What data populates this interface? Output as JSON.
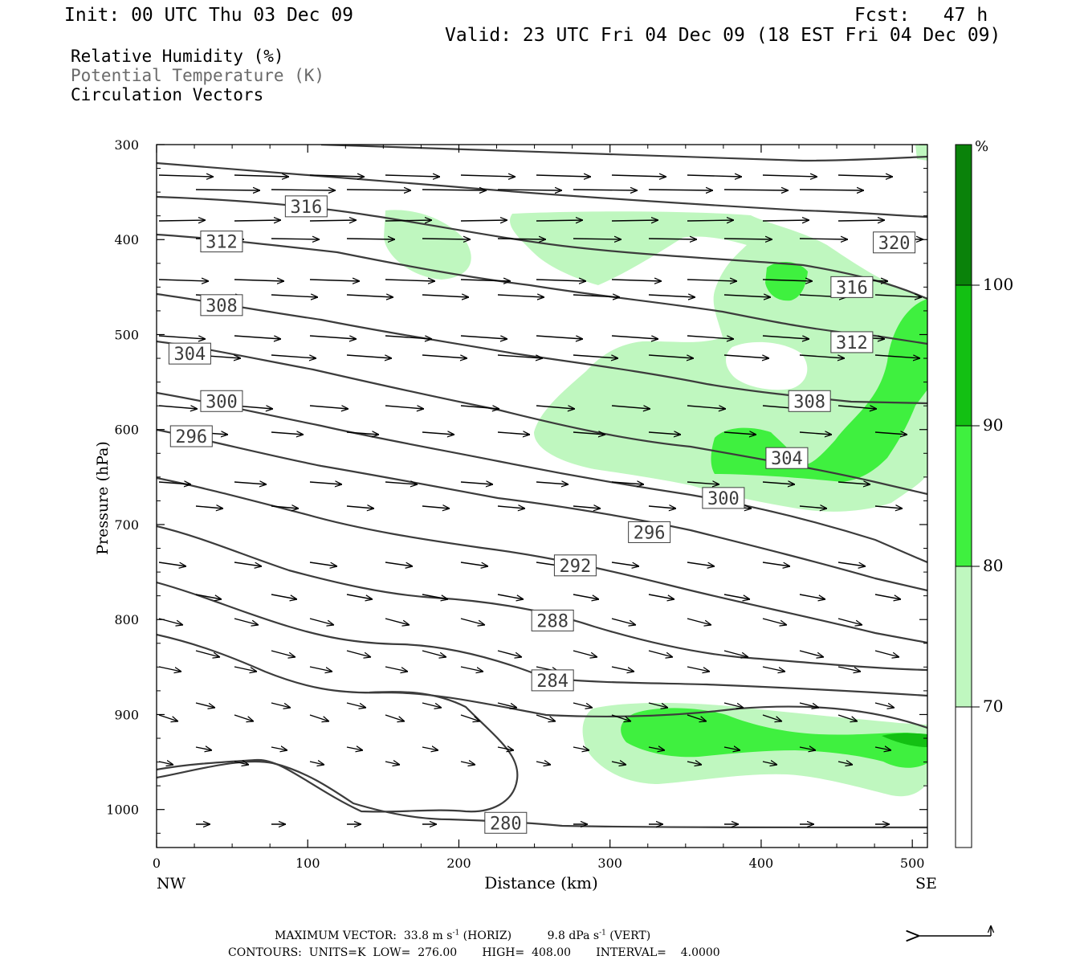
{
  "header": {
    "init": "Init: 00 UTC Thu 03 Dec 09",
    "fcst": "Fcst:   47 h",
    "valid": "Valid: 23 UTC Fri 04 Dec 09 (18 EST Fri 04 Dec 09)"
  },
  "fields": [
    "Relative Humidity (%)",
    "Potential Temperature (K)",
    "Circulation Vectors"
  ],
  "colors": {
    "rh70": "#bff7bf",
    "rh80": "#3ff03f",
    "rh90": "#13c013",
    "rh100": "#0a820a",
    "contour": "#3c3c3c"
  },
  "footer": {
    "max_vector_label": "MAXIMUM VECTOR:",
    "horiz_value": "33.8",
    "horiz_unit": "m s",
    "horiz_exp": "-1",
    "horiz_tag": "(HORIZ)",
    "vert_value": "9.8",
    "vert_unit": "dPa s",
    "vert_exp": "-1",
    "vert_tag": "(VERT)",
    "contours_line": "CONTOURS:  UNITS=K  LOW=  276.00       HIGH=  408.00       INTERVAL=    4.0000"
  },
  "chart_data": {
    "type": "contour",
    "xlabel": "Distance (km)",
    "ylabel": "Pressure (hPa)",
    "xlim": [
      0,
      510
    ],
    "ylim": [
      1040,
      300
    ],
    "x_ticks": [
      0,
      100,
      200,
      300,
      400,
      500
    ],
    "y_ticks": [
      300,
      400,
      500,
      600,
      700,
      800,
      900,
      1000
    ],
    "x_end_labels": [
      "NW",
      "SE"
    ],
    "colorbar": {
      "unit": "%",
      "levels": [
        70,
        80,
        90,
        100
      ]
    },
    "theta_labels": [
      {
        "value": "316",
        "x": 99,
        "p": 365
      },
      {
        "value": "312",
        "x": 43,
        "p": 402
      },
      {
        "value": "308",
        "x": 43,
        "p": 469
      },
      {
        "value": "304",
        "x": 22,
        "p": 520
      },
      {
        "value": "300",
        "x": 43,
        "p": 570
      },
      {
        "value": "296",
        "x": 23,
        "p": 607
      },
      {
        "value": "320",
        "x": 488,
        "p": 403
      },
      {
        "value": "316",
        "x": 460,
        "p": 450
      },
      {
        "value": "312",
        "x": 460,
        "p": 508
      },
      {
        "value": "308",
        "x": 432,
        "p": 570
      },
      {
        "value": "304",
        "x": 417,
        "p": 630
      },
      {
        "value": "300",
        "x": 375,
        "p": 672
      },
      {
        "value": "296",
        "x": 326,
        "p": 708
      },
      {
        "value": "292",
        "x": 277,
        "p": 743
      },
      {
        "value": "288",
        "x": 262,
        "p": 801
      },
      {
        "value": "284",
        "x": 262,
        "p": 864
      },
      {
        "value": "280",
        "x": 231,
        "p": 1014
      }
    ]
  }
}
